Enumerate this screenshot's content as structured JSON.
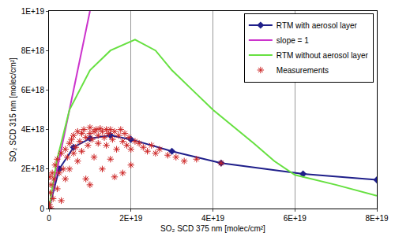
{
  "chart_data": {
    "type": "scatter",
    "x_label": "SO₂ SCD 375 nm [molec/cm²]",
    "y_label": "SO₂ SCD 315 nm [molec/cm²]",
    "xlim": [
      0,
      8e+19
    ],
    "ylim": [
      0,
      1e+19
    ],
    "xticks": [
      0,
      {
        "value": 2e+19,
        "label": "2E+19"
      },
      {
        "value": 4e+19,
        "label": "4E+19"
      },
      {
        "value": 6e+19,
        "label": "6E+19"
      },
      {
        "value": 8e+19,
        "label": "8E+19"
      }
    ],
    "yticks": [
      0,
      {
        "value": 2e+18,
        "label": "2E+18"
      },
      {
        "value": 4e+18,
        "label": "4E+18"
      },
      {
        "value": 6e+18,
        "label": "6E+18"
      },
      {
        "value": 8e+18,
        "label": "8E+18"
      },
      {
        "value": 1e+19,
        "label": "1E+19"
      }
    ],
    "grid": true,
    "legend": "upper right",
    "series": [
      {
        "name": "RTM with aerosol layer",
        "color": "#1f1f8a",
        "type": "line",
        "marker": "diamond",
        "line_style": "solid",
        "x": [
          0,
          2.5e+18,
          6e+18,
          1e+19,
          1.5e+19,
          2e+19,
          3e+19,
          4.2e+19,
          6.2e+19,
          8e+19
        ],
        "values": [
          0,
          2e+18,
          3.1e+18,
          3.55e+18,
          3.7e+18,
          3.5e+18,
          2.9e+18,
          2.3e+18,
          1.75e+18,
          1.45e+18
        ]
      },
      {
        "name": "slope = 1",
        "color": "#cc33cc",
        "type": "line",
        "marker": "none",
        "line_style": "solid",
        "x": [
          0,
          1e+19
        ],
        "values": [
          0,
          1e+19
        ]
      },
      {
        "name": "RTM without aerosol layer",
        "color": "#66e040",
        "type": "line",
        "marker": "none",
        "line_style": "solid",
        "x": [
          0,
          2e+18,
          5e+18,
          1e+19,
          1.5e+19,
          2.1e+19,
          2.6e+19,
          3e+19,
          3.5e+19,
          4e+19,
          5e+19,
          5.5e+19,
          6e+19,
          7e+19,
          8e+19
        ],
        "values": [
          0,
          2.5e+18,
          5e+18,
          7e+18,
          8e+18,
          8.55e+18,
          8e+18,
          7e+18,
          6e+18,
          5e+18,
          3.3e+18,
          2.4e+18,
          1.7e+18,
          1.2e+18,
          6.5e+17
        ]
      },
      {
        "name": "Measurements",
        "color": "#cc2222",
        "type": "scatter",
        "marker": "asterisk",
        "x": [
          1e+17,
          3e+17,
          5e+17,
          8e+17,
          1e+18,
          1.2e+18,
          1.5e+18,
          2e+18,
          2e+18,
          2.5e+18,
          3e+18,
          3e+18,
          3.5e+18,
          4e+18,
          4e+18,
          4.5e+18,
          5e+18,
          5e+18,
          5.5e+18,
          6e+18,
          6e+18,
          6.5e+18,
          7e+18,
          7e+18,
          7.5e+18,
          8e+18,
          8e+18,
          8.5e+18,
          9e+18,
          9e+18,
          9.5e+18,
          1e+19,
          1e+19,
          1.05e+19,
          1.1e+19,
          1.1e+19,
          1.15e+19,
          1.2e+19,
          1.2e+19,
          1.25e+19,
          1.3e+19,
          1.3e+19,
          1.35e+19,
          1.4e+19,
          1.4e+19,
          1.45e+19,
          1.5e+19,
          1.5e+19,
          1.55e+19,
          1.6e+19,
          1.65e+19,
          1.7e+19,
          1.75e+19,
          1.8e+19,
          1.8e+19,
          1.85e+19,
          1.9e+19,
          1.95e+19,
          2e+19,
          2e+19,
          2.1e+19,
          2.2e+19,
          2.3e+19,
          2.4e+19,
          2.5e+19,
          2.6e+19,
          2.7e+19,
          2.9e+19,
          3.1e+19,
          3.3e+19,
          3.6e+19,
          4.2e+19,
          1.6e+19,
          1e+19,
          5e+17,
          2e+17
        ],
        "values": [
          2e+17,
          8e+17,
          1.2e+18,
          1.8e+18,
          5e+17,
          1.5e+18,
          2.2e+18,
          1e+18,
          2.5e+18,
          1.8e+18,
          2.8e+18,
          4e+17,
          2e+18,
          3e+18,
          1.5e+18,
          2.6e+18,
          3.3e+18,
          2e+18,
          3.5e+18,
          2.8e+18,
          3.7e+18,
          3.1e+18,
          3.9e+18,
          2.4e+18,
          3.4e+18,
          3.8e+18,
          2.9e+18,
          4e+18,
          3.6e+18,
          1.5e+18,
          3.2e+18,
          4.1e+18,
          3.8e+18,
          3.5e+18,
          3.9e+18,
          2.6e+18,
          4e+18,
          3.7e+18,
          3.3e+18,
          4.05e+18,
          3.9e+18,
          2e+18,
          3.6e+18,
          4e+18,
          3.2e+18,
          3.8e+18,
          4e+18,
          2.5e+18,
          3.5e+18,
          3.9e+18,
          3e+18,
          3.7e+18,
          4e+18,
          3.4e+18,
          1.8e+18,
          3.8e+18,
          3.2e+18,
          3.6e+18,
          3e+18,
          2.2e+18,
          3.4e+18,
          3.3e+18,
          3.1e+18,
          2.9e+18,
          3.2e+18,
          2.8e+18,
          3e+18,
          2.7e+18,
          2.6e+18,
          2.4e+18,
          2.5e+18,
          2.3e+18,
          1.6e+18,
          1.2e+18,
          0,
          1.6e+18
        ]
      }
    ]
  }
}
